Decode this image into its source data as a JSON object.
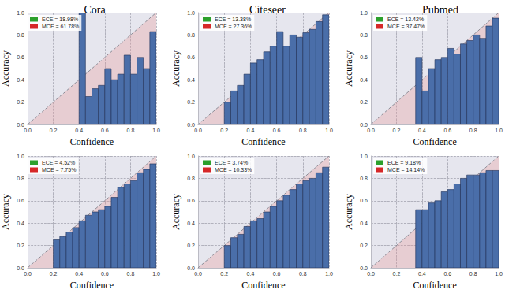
{
  "chart_data": [
    {
      "type": "bar",
      "title": "Cora",
      "xlabel": "Confidence",
      "ylabel": "Accuracy",
      "bins": [
        0,
        0.05,
        0.1,
        0.15,
        0.2,
        0.25,
        0.3,
        0.35,
        0.4,
        0.45,
        0.5,
        0.55,
        0.6,
        0.65,
        0.7,
        0.75,
        0.8,
        0.85,
        0.9,
        0.95,
        1
      ],
      "values": [
        null,
        null,
        null,
        null,
        null,
        null,
        null,
        null,
        1.0,
        0.25,
        0.32,
        0.35,
        0.5,
        0.4,
        0.45,
        0.62,
        0.45,
        0.6,
        0.5,
        0.83
      ],
      "color": "#4a6ea9",
      "annotations": [
        {
          "text": "ECE = 18.98%",
          "color": "#2ca02c"
        },
        {
          "text": "MCE = 61.78%",
          "color": "#d62728"
        }
      ],
      "xlim": [
        0,
        1
      ],
      "ylim": [
        0,
        1
      ],
      "xticks": [
        {
          "value": 0,
          "label": "0.0"
        },
        0.2,
        0.4,
        0.6,
        0.8,
        {
          "value": 1,
          "label": "1.0"
        }
      ],
      "yticks": [
        {
          "value": 0,
          "label": "0.0"
        },
        0.2,
        0.4,
        0.6,
        0.8,
        {
          "value": 1,
          "label": "1.0"
        }
      ],
      "grid": true,
      "legend": "upper left"
    },
    {
      "type": "bar",
      "title": "Citeseer",
      "xlabel": "Confidence",
      "ylabel": "Accuracy",
      "bins": [
        0,
        0.05,
        0.1,
        0.15,
        0.2,
        0.25,
        0.3,
        0.35,
        0.4,
        0.45,
        0.5,
        0.55,
        0.6,
        0.65,
        0.7,
        0.75,
        0.8,
        0.85,
        0.9,
        0.95,
        1
      ],
      "values": [
        null,
        null,
        null,
        null,
        0.2,
        0.3,
        0.35,
        0.45,
        0.55,
        0.58,
        0.65,
        0.7,
        0.83,
        0.7,
        0.8,
        0.78,
        0.82,
        0.85,
        0.92,
        0.98
      ],
      "color": "#4a6ea9",
      "annotations": [
        {
          "text": "ECE = 13.38%",
          "color": "#2ca02c"
        },
        {
          "text": "MCE = 27.36%",
          "color": "#d62728"
        }
      ],
      "xlim": [
        0,
        1
      ],
      "ylim": [
        0,
        1
      ],
      "xticks": [
        {
          "value": 0,
          "label": "0.0"
        },
        0.2,
        0.4,
        0.6,
        0.8,
        {
          "value": 1,
          "label": "1.0"
        }
      ],
      "yticks": [
        {
          "value": 0,
          "label": "0.0"
        },
        0.2,
        0.4,
        0.6,
        0.8,
        {
          "value": 1,
          "label": "1.0"
        }
      ],
      "grid": true,
      "legend": "upper left"
    },
    {
      "type": "bar",
      "title": "Pubmed",
      "xlabel": "Confidence",
      "ylabel": "Accuracy",
      "bins": [
        0,
        0.05,
        0.1,
        0.15,
        0.2,
        0.25,
        0.3,
        0.35,
        0.4,
        0.45,
        0.5,
        0.55,
        0.6,
        0.65,
        0.7,
        0.75,
        0.8,
        0.85,
        0.9,
        0.95,
        1
      ],
      "values": [
        null,
        null,
        null,
        null,
        null,
        null,
        null,
        0.6,
        0.3,
        0.5,
        0.58,
        0.6,
        0.68,
        0.63,
        0.72,
        0.75,
        0.8,
        0.77,
        0.88,
        0.95
      ],
      "color": "#4a6ea9",
      "annotations": [
        {
          "text": "ECE = 13.42%",
          "color": "#2ca02c"
        },
        {
          "text": "MCE = 37.47%",
          "color": "#d62728"
        }
      ],
      "xlim": [
        0,
        1
      ],
      "ylim": [
        0,
        1
      ],
      "xticks": [
        {
          "value": 0,
          "label": "0.0"
        },
        0.2,
        0.4,
        0.6,
        0.8,
        {
          "value": 1,
          "label": "1.0"
        }
      ],
      "yticks": [
        {
          "value": 0,
          "label": "0.0"
        },
        0.2,
        0.4,
        0.6,
        0.8,
        {
          "value": 1,
          "label": "1.0"
        }
      ],
      "grid": true,
      "legend": "upper left"
    },
    {
      "type": "bar",
      "xlabel": "Confidence",
      "ylabel": "Accuracy",
      "bins": [
        0,
        0.05,
        0.1,
        0.15,
        0.2,
        0.25,
        0.3,
        0.35,
        0.4,
        0.45,
        0.5,
        0.55,
        0.6,
        0.65,
        0.7,
        0.75,
        0.8,
        0.85,
        0.9,
        0.95,
        1
      ],
      "values": [
        null,
        null,
        null,
        null,
        0.25,
        0.28,
        0.32,
        0.36,
        0.42,
        0.47,
        0.5,
        0.52,
        0.55,
        0.63,
        0.72,
        0.75,
        0.78,
        0.85,
        0.88,
        0.93
      ],
      "color": "#4a6ea9",
      "annotations": [
        {
          "text": "ECE = 4.52%",
          "color": "#2ca02c"
        },
        {
          "text": "MCE = 7.75%",
          "color": "#d62728"
        }
      ],
      "xlim": [
        0,
        1
      ],
      "ylim": [
        0,
        1
      ],
      "xticks": [
        {
          "value": 0,
          "label": "0.0"
        },
        0.2,
        0.4,
        0.6,
        0.8,
        {
          "value": 1,
          "label": "1.0"
        }
      ],
      "yticks": [
        {
          "value": 0,
          "label": "0.0"
        },
        0.2,
        0.4,
        0.6,
        0.8,
        {
          "value": 1,
          "label": "1.0"
        }
      ],
      "grid": true,
      "legend": "upper left"
    },
    {
      "type": "bar",
      "xlabel": "Confidence",
      "ylabel": "Accuracy",
      "bins": [
        0,
        0.05,
        0.1,
        0.15,
        0.2,
        0.25,
        0.3,
        0.35,
        0.4,
        0.45,
        0.5,
        0.55,
        0.6,
        0.65,
        0.7,
        0.75,
        0.8,
        0.85,
        0.9,
        0.95,
        1
      ],
      "values": [
        null,
        null,
        null,
        null,
        0.2,
        0.27,
        0.3,
        0.37,
        0.42,
        0.44,
        0.5,
        0.55,
        0.6,
        0.65,
        0.7,
        0.75,
        0.78,
        0.8,
        0.85,
        0.9
      ],
      "color": "#4a6ea9",
      "annotations": [
        {
          "text": "ECE = 3.74%",
          "color": "#2ca02c"
        },
        {
          "text": "MCE = 10.33%",
          "color": "#d62728"
        }
      ],
      "xlim": [
        0,
        1
      ],
      "ylim": [
        0,
        1
      ],
      "xticks": [
        {
          "value": 0,
          "label": "0.0"
        },
        0.2,
        0.4,
        0.6,
        0.8,
        {
          "value": 1,
          "label": "1.0"
        }
      ],
      "yticks": [
        {
          "value": 0,
          "label": "0.0"
        },
        0.2,
        0.4,
        0.6,
        0.8,
        {
          "value": 1,
          "label": "1.0"
        }
      ],
      "grid": true,
      "legend": "upper left"
    },
    {
      "type": "bar",
      "xlabel": "Confidence",
      "ylabel": "Accuracy",
      "bins": [
        0,
        0.05,
        0.1,
        0.15,
        0.2,
        0.25,
        0.3,
        0.35,
        0.4,
        0.45,
        0.5,
        0.55,
        0.6,
        0.65,
        0.7,
        0.75,
        0.8,
        0.85,
        0.9,
        0.95,
        1
      ],
      "values": [
        null,
        null,
        null,
        null,
        null,
        null,
        null,
        0.52,
        0.52,
        0.58,
        0.6,
        0.68,
        0.7,
        0.75,
        0.8,
        0.83,
        0.83,
        0.85,
        0.87,
        0.87
      ],
      "color": "#4a6ea9",
      "annotations": [
        {
          "text": "ECE = 9.18%",
          "color": "#2ca02c"
        },
        {
          "text": "MCE = 14.14%",
          "color": "#d62728"
        }
      ],
      "xlim": [
        0,
        1
      ],
      "ylim": [
        0,
        1
      ],
      "xticks": [
        {
          "value": 0,
          "label": "0.0"
        },
        0.2,
        0.4,
        0.6,
        0.8,
        {
          "value": 1,
          "label": "1.0"
        }
      ],
      "yticks": [
        {
          "value": 0,
          "label": "0.0"
        },
        0.2,
        0.4,
        0.6,
        0.8,
        {
          "value": 1,
          "label": "1.0"
        }
      ],
      "grid": true,
      "legend": "upper left"
    }
  ]
}
